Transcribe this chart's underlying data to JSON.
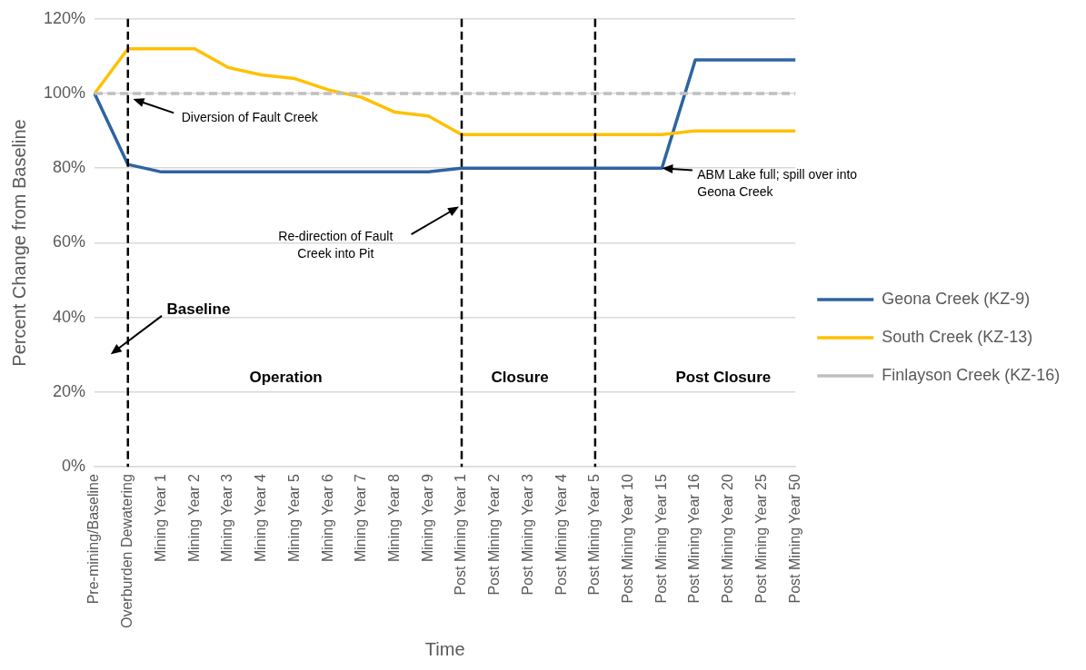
{
  "chart_data": {
    "type": "line",
    "xlabel": "Time",
    "ylabel": "Percent Change from Baseline",
    "categories": [
      "Pre-mining/Baseline",
      "Overburden Dewatering",
      "Mining Year 1",
      "Mining Year 2",
      "Mining Year 3",
      "Mining Year 4",
      "Mining Year 5",
      "Mining Year 6",
      "Mining Year 7",
      "Mining Year 8",
      "Mining Year 9",
      "Post Mining Year 1",
      "Post Mining Year 2",
      "Post Mining Year 3",
      "Post Mining Year 4",
      "Post Mining Year 5",
      "Post Mining Year 10",
      "Post Mining Year 15",
      "Post Mining Year 16",
      "Post Mining Year 20",
      "Post Mining Year 25",
      "Post Mining Year 50"
    ],
    "series": [
      {
        "name": "Geona Creek (KZ-9)",
        "color": "#2e64a0",
        "line_style": "solid",
        "values": [
          100,
          81,
          79,
          79,
          79,
          79,
          79,
          79,
          79,
          79,
          79,
          80,
          80,
          80,
          80,
          80,
          80,
          80,
          109,
          109,
          109,
          109
        ]
      },
      {
        "name": "South Creek (KZ-13)",
        "color": "#ffc000",
        "line_style": "solid",
        "values": [
          100,
          112,
          112,
          112,
          107,
          105,
          104,
          101,
          99,
          95,
          94,
          89,
          89,
          89,
          89,
          89,
          89,
          89,
          90,
          90,
          90,
          90
        ]
      },
      {
        "name": "Finlayson Creek (KZ-16)",
        "color": "#bfbfbf",
        "line_style": "dashed",
        "values": [
          100,
          100,
          100,
          100,
          100,
          100,
          100,
          100,
          100,
          100,
          100,
          100,
          100,
          100,
          100,
          100,
          100,
          100,
          100,
          100,
          100,
          100
        ]
      }
    ],
    "ylim": [
      0,
      120
    ],
    "yticks": [
      {
        "value": 0,
        "label": "0%"
      },
      {
        "value": 20,
        "label": "20%"
      },
      {
        "value": 40,
        "label": "40%"
      },
      {
        "value": 60,
        "label": "60%"
      },
      {
        "value": 80,
        "label": "80%"
      },
      {
        "value": 100,
        "label": "100%"
      },
      {
        "value": 120,
        "label": "120%"
      }
    ],
    "grid": "y",
    "legend": "right",
    "marker": "none",
    "ref_lines": [
      {
        "axis": "x",
        "value": "Overburden Dewatering",
        "color": "#000000",
        "line_style": "dashed"
      },
      {
        "axis": "x",
        "value": "Post Mining Year 1",
        "color": "#000000",
        "line_style": "dashed"
      },
      {
        "axis": "x",
        "value": "Post Mining Year 5",
        "color": "#000000",
        "line_style": "dashed"
      }
    ],
    "annotations": [
      "Diversion of Fault Creek",
      "Re-direction of Fault Creek into Pit",
      {
        "text": "ABM Lake full; spill over into Geona Creek",
        "x": "Post Mining Year 15",
        "y": 80
      },
      "Baseline",
      "Operation",
      "Closure",
      "Post Closure"
    ]
  }
}
